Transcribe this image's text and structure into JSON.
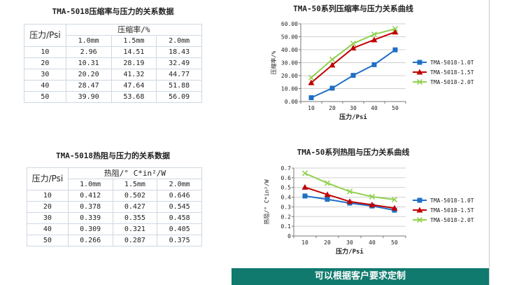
{
  "table1": {
    "title": "TMA-5018压缩率与压力的关系数据",
    "row_header": "压力/Psi",
    "group_header": "压缩率/%",
    "columns": [
      "1.0mm",
      "1.5mm",
      "2.0mm"
    ],
    "rows": [
      {
        "psi": "10",
        "values": [
          "2.96",
          "14.51",
          "18.43"
        ]
      },
      {
        "psi": "20",
        "values": [
          "10.31",
          "28.19",
          "32.49"
        ]
      },
      {
        "psi": "30",
        "values": [
          "20.20",
          "41.32",
          "44.77"
        ]
      },
      {
        "psi": "40",
        "values": [
          "28.47",
          "47.64",
          "51.88"
        ]
      },
      {
        "psi": "50",
        "values": [
          "39.90",
          "53.68",
          "56.09"
        ]
      }
    ]
  },
  "table2": {
    "title": "TMA-5018热阻与压力的关系数据",
    "row_header": "压力/Psi",
    "group_header": "热阻/° C*in²/W",
    "columns": [
      "1.0mm",
      "1.5mm",
      "2.0mm"
    ],
    "rows": [
      {
        "psi": "10",
        "values": [
          "0.412",
          "0.502",
          "0.646"
        ]
      },
      {
        "psi": "20",
        "values": [
          "0.378",
          "0.427",
          "0.545"
        ]
      },
      {
        "psi": "30",
        "values": [
          "0.339",
          "0.355",
          "0.458"
        ]
      },
      {
        "psi": "40",
        "values": [
          "0.309",
          "0.321",
          "0.405"
        ]
      },
      {
        "psi": "50",
        "values": [
          "0.266",
          "0.287",
          "0.375"
        ]
      }
    ]
  },
  "chart_data": [
    {
      "type": "line",
      "title": "TMA-50系列压缩率与压力关系曲线",
      "xlabel": "压力/Psi",
      "ylabel": "压缩率/%",
      "categories": [
        "10",
        "20",
        "30",
        "40",
        "50"
      ],
      "ylim": [
        0,
        60
      ],
      "yticks": [
        "0.00",
        "10.00",
        "20.00",
        "30.00",
        "40.00",
        "50.00",
        "60.00"
      ],
      "legend_position": "right",
      "series": [
        {
          "name": "TMA-5018-1.0T",
          "color": "#1f6fc5",
          "marker": "square",
          "values": [
            2.96,
            10.31,
            20.2,
            28.47,
            39.9
          ]
        },
        {
          "name": "TMA-5018-1.5T",
          "color": "#c00000",
          "marker": "triangle",
          "values": [
            14.51,
            28.19,
            41.32,
            47.64,
            53.68
          ]
        },
        {
          "name": "TMA-5018-2.0T",
          "color": "#92d050",
          "marker": "x",
          "values": [
            18.43,
            32.49,
            44.77,
            51.88,
            56.09
          ]
        }
      ]
    },
    {
      "type": "line",
      "title": "TMA-50系列热阻与压力关系曲线",
      "xlabel": "压力/Psi",
      "ylabel": "热阻/° C*in²/W",
      "categories": [
        "10",
        "20",
        "30",
        "40",
        "50"
      ],
      "ylim": [
        0,
        0.7
      ],
      "yticks": [
        "0",
        "0.1",
        "0.2",
        "0.3",
        "0.4",
        "0.5",
        "0.6",
        "0.7"
      ],
      "legend_position": "right",
      "series": [
        {
          "name": "TMA-5018-1.0T",
          "color": "#1f6fc5",
          "marker": "square",
          "values": [
            0.412,
            0.378,
            0.339,
            0.309,
            0.266
          ]
        },
        {
          "name": "TMA-5018-1.5T",
          "color": "#c00000",
          "marker": "triangle",
          "values": [
            0.502,
            0.427,
            0.355,
            0.321,
            0.287
          ]
        },
        {
          "name": "TMA-5018-2.0T",
          "color": "#92d050",
          "marker": "x",
          "values": [
            0.646,
            0.545,
            0.458,
            0.405,
            0.375
          ]
        }
      ]
    }
  ],
  "footer": {
    "banner_text": "可以根据客户要求定制",
    "banner_color": "#0f7a6d"
  }
}
